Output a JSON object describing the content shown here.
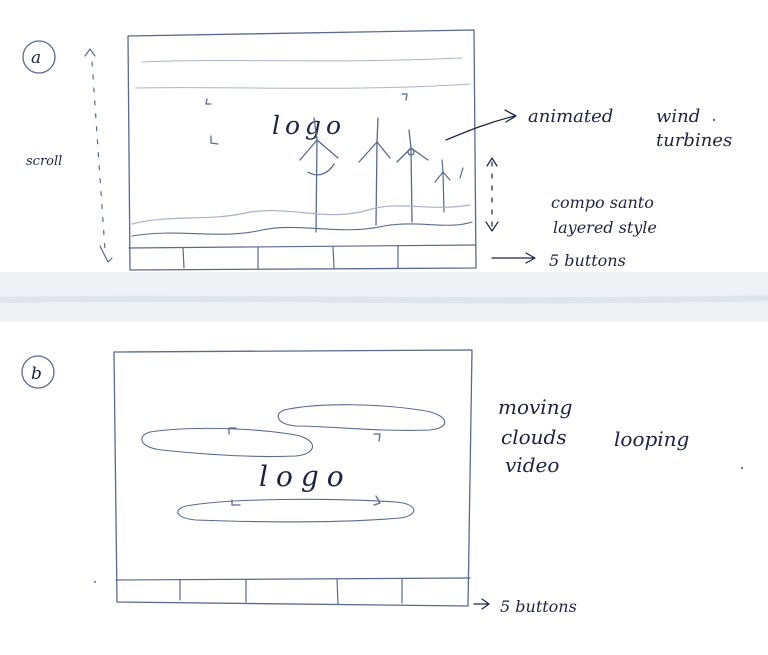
{
  "sketch_a": {
    "marker": "a",
    "side_label": "scroll",
    "logo_text": "logo",
    "annotation_turbines_line1": "animated",
    "annotation_turbines_line2": "wind",
    "annotation_turbines_line3": "turbines",
    "annotation_style_line1": "compo santo",
    "annotation_style_line2": "layered style",
    "annotation_buttons": "5 buttons",
    "button_count": 5
  },
  "sketch_b": {
    "marker": "b",
    "logo_text": "logo",
    "annotation_line1": "moving",
    "annotation_line2": "clouds",
    "annotation_line3": "looping",
    "annotation_line4": "video",
    "annotation_buttons": "5 buttons",
    "button_count": 5
  },
  "colors": {
    "paper": "#ffffff",
    "pencil": "#5a6a8c",
    "ink": "#1d2440",
    "fold_shadow": "#e9ecf1"
  }
}
